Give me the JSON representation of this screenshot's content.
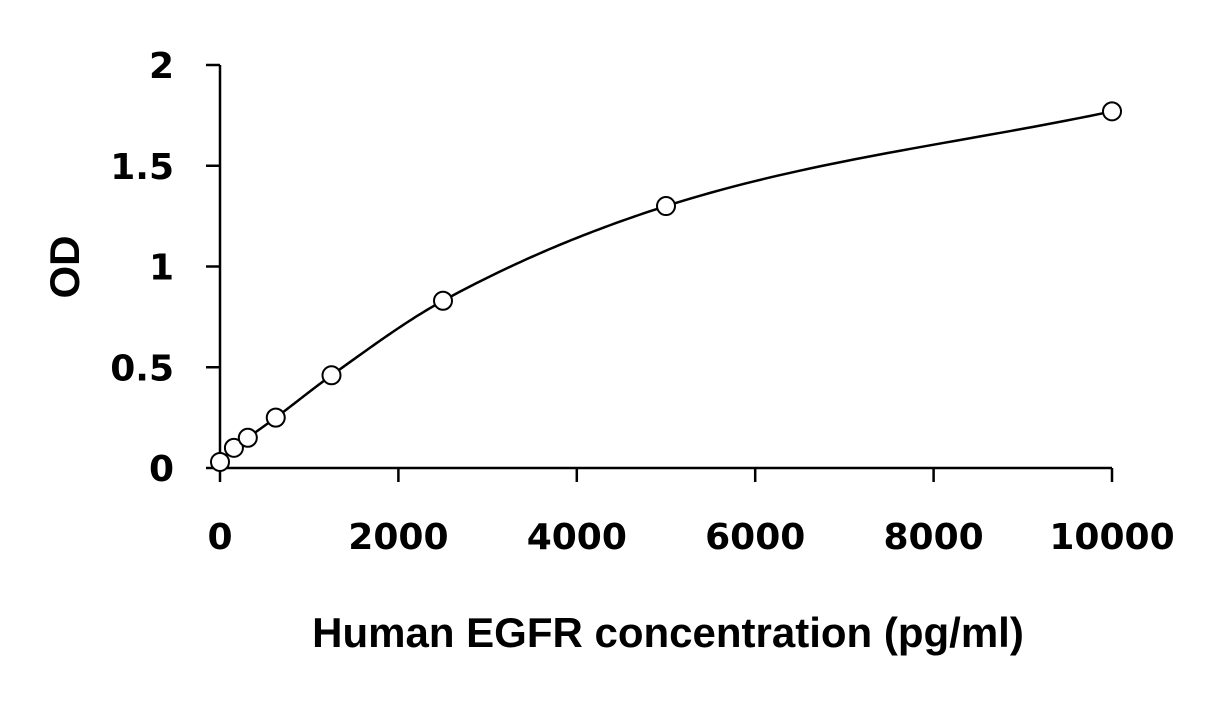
{
  "chart_data": {
    "type": "scatter",
    "xlabel": "Human EGFR concentration (pg/ml)",
    "ylabel": "OD",
    "xlim": [
      0,
      10000
    ],
    "ylim": [
      0,
      2
    ],
    "x_ticks": [
      "0",
      "2000",
      "4000",
      "6000",
      "8000",
      "10000"
    ],
    "y_ticks": [
      "0",
      "0.5",
      "1",
      "1.5",
      "2"
    ],
    "series": [
      {
        "x": [
          0,
          156,
          312,
          625,
          1250,
          2500,
          5000,
          10000
        ],
        "values": [
          0.03,
          0.1,
          0.15,
          0.25,
          0.46,
          0.83,
          1.3,
          1.77
        ],
        "marker": "open-circle",
        "fit": "smooth-curve"
      }
    ],
    "grid": false,
    "legend": "none",
    "colors": {
      "marker_edge": "#000000",
      "marker_fill": "#ffffff",
      "line": "#000000"
    }
  }
}
